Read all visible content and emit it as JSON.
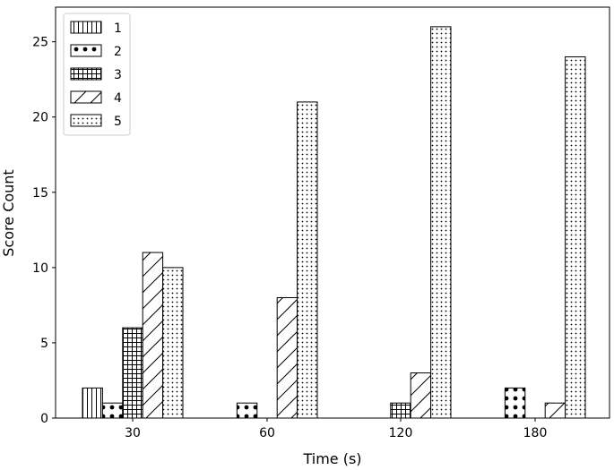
{
  "chart_data": {
    "type": "bar",
    "categories": [
      "30",
      "60",
      "120",
      "180"
    ],
    "series": [
      {
        "name": "1",
        "values": [
          2,
          0,
          0,
          0
        ],
        "hatch": "vertical"
      },
      {
        "name": "2",
        "values": [
          1,
          1,
          0,
          2
        ],
        "hatch": "circles"
      },
      {
        "name": "3",
        "values": [
          6,
          0,
          1,
          0
        ],
        "hatch": "grid"
      },
      {
        "name": "4",
        "values": [
          11,
          8,
          3,
          1
        ],
        "hatch": "diagonal"
      },
      {
        "name": "5",
        "values": [
          10,
          21,
          26,
          24
        ],
        "hatch": "dots"
      }
    ],
    "xlabel": "Time (s)",
    "ylabel": "Score Count",
    "ylim": [
      0,
      27.3
    ],
    "yticks": [
      0,
      5,
      10,
      15,
      20,
      25
    ],
    "legend_position": "top-left",
    "grid": false,
    "bar_fill": "#ffffff",
    "edge_color": "#000000"
  }
}
